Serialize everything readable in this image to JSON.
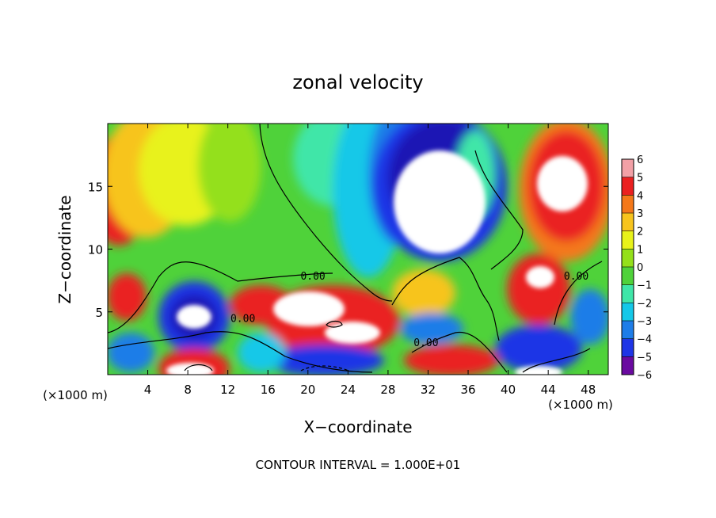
{
  "chart_data": {
    "type": "heatmap",
    "title": "zonal velocity",
    "xlabel": "X−coordinate",
    "ylabel": "Z−coordinate",
    "x_unit_left": "(×1000 m)",
    "x_unit_right": "(×1000 m)",
    "xlim": [
      0,
      50
    ],
    "ylim": [
      0,
      20
    ],
    "x_ticks": [
      4,
      8,
      12,
      16,
      20,
      24,
      28,
      32,
      36,
      40,
      44,
      48
    ],
    "y_ticks": [
      5,
      10,
      15
    ],
    "colorbar": {
      "levels": [
        -6,
        -5,
        -4,
        -3,
        -2,
        -1,
        0,
        1,
        2,
        3,
        4,
        5,
        6
      ],
      "tick_labels": [
        "−6",
        "−5",
        "−4",
        "−3",
        "−2",
        "−1",
        "0",
        "1",
        "2",
        "3",
        "4",
        "5",
        "6"
      ],
      "colors": [
        "#6a0aa0",
        "#1c12b4",
        "#1f35e6",
        "#1e7de8",
        "#14c8e8",
        "#3fe6a8",
        "#4fd23a",
        "#94e01a",
        "#e8f21a",
        "#f7c41e",
        "#f4781a",
        "#ea2020",
        "#f2a0a6"
      ],
      "saturated_above": "#ffffff"
    },
    "contour_labels": [
      {
        "text": "0.00",
        "x": 20.5,
        "y": 7.9
      },
      {
        "text": "0.00",
        "x": 13.5,
        "y": 4.5
      },
      {
        "text": "0.00",
        "x": 31.8,
        "y": 2.6
      },
      {
        "text": "0.00",
        "x": 46.8,
        "y": 7.9
      }
    ],
    "annotation": "CONTOUR INTERVAL = 1.000E+01"
  }
}
